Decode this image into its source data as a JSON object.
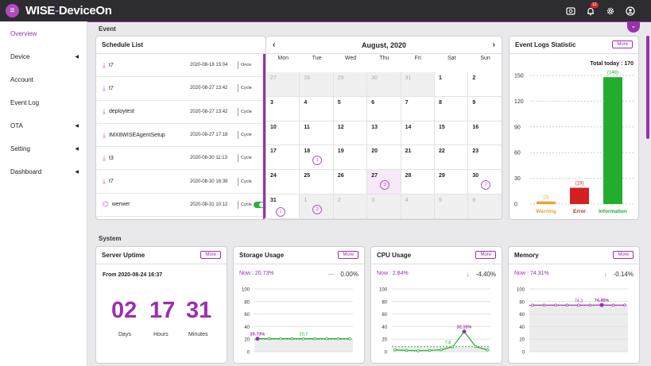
{
  "app": {
    "logo_text": "WISE",
    "logo_dash": "-",
    "logo_rest": "DeviceOn",
    "notification_count": "12"
  },
  "sidebar": {
    "items": [
      {
        "label": "Overview",
        "active": true,
        "caret": false
      },
      {
        "label": "Device",
        "caret": true
      },
      {
        "label": "Account",
        "caret": false
      },
      {
        "label": "Event Log",
        "caret": false
      },
      {
        "label": "OTA",
        "caret": true
      },
      {
        "label": "Setting",
        "caret": true
      },
      {
        "label": "Dashboard",
        "caret": true
      }
    ]
  },
  "sections": {
    "event": "Event",
    "system": "System"
  },
  "schedule": {
    "title": "Schedule List",
    "rows": [
      {
        "name": "t7",
        "date": "2020-08-18 15:04",
        "type": "Once",
        "toggle": false
      },
      {
        "name": "t7",
        "date": "2020-08-27 13:42",
        "type": "Cycle",
        "toggle": false
      },
      {
        "name": "deploytest",
        "date": "2020-08-27 13:42",
        "type": "Cycle",
        "toggle": false
      },
      {
        "name": "IMX8WISEAgentSetup",
        "date": "2020-08-27 17:18",
        "type": "Cycle",
        "toggle": false
      },
      {
        "name": "t3",
        "date": "2020-08-30 11:13",
        "type": "Cycle",
        "toggle": false
      },
      {
        "name": "t7",
        "date": "2020-08-30 16:39",
        "type": "Cycle",
        "toggle": false
      },
      {
        "name": "werwer",
        "date": "2020-08-31 10:12",
        "type": "Cycle",
        "toggle": true
      }
    ]
  },
  "calendar": {
    "title": "August, 2020",
    "prev": "‹",
    "next": "›",
    "weekdays": [
      "Mon",
      "Tue",
      "Wed",
      "Thu",
      "Fri",
      "Sat",
      "Sun"
    ],
    "weeks": [
      [
        {
          "d": "27",
          "o": true
        },
        {
          "d": "28",
          "o": true
        },
        {
          "d": "29",
          "o": true
        },
        {
          "d": "30",
          "o": true
        },
        {
          "d": "31",
          "o": true
        },
        {
          "d": "1"
        },
        {
          "d": "2"
        }
      ],
      [
        {
          "d": "3"
        },
        {
          "d": "4"
        },
        {
          "d": "5"
        },
        {
          "d": "6"
        },
        {
          "d": "7"
        },
        {
          "d": "8"
        },
        {
          "d": "9"
        }
      ],
      [
        {
          "d": "10"
        },
        {
          "d": "11"
        },
        {
          "d": "12"
        },
        {
          "d": "13"
        },
        {
          "d": "14"
        },
        {
          "d": "15"
        },
        {
          "d": "16"
        }
      ],
      [
        {
          "d": "17"
        },
        {
          "d": "18",
          "ev": "1"
        },
        {
          "d": "19"
        },
        {
          "d": "20"
        },
        {
          "d": "21"
        },
        {
          "d": "22"
        },
        {
          "d": "23"
        }
      ],
      [
        {
          "d": "24"
        },
        {
          "d": "25"
        },
        {
          "d": "26"
        },
        {
          "d": "27",
          "ev": "3",
          "sel": true
        },
        {
          "d": "28"
        },
        {
          "d": "29"
        },
        {
          "d": "30",
          "ev": "2"
        }
      ],
      [
        {
          "d": "31",
          "ev": "1"
        },
        {
          "d": "1",
          "o": true,
          "ev": "2"
        },
        {
          "d": "2",
          "o": true
        },
        {
          "d": "3",
          "o": true
        },
        {
          "d": "4",
          "o": true
        },
        {
          "d": "5",
          "o": true
        },
        {
          "d": "6",
          "o": true
        }
      ]
    ]
  },
  "event_stats": {
    "title": "Event Logs Statistic",
    "more": "More",
    "total": "Total today : 170",
    "chart_data": {
      "type": "bar",
      "categories": [
        "Warning",
        "Error",
        "Information"
      ],
      "values": [
        3,
        19,
        148
      ],
      "labels": [
        "(3)",
        "(19)",
        "(148)"
      ],
      "colors": [
        "#f0a030",
        "#d42020",
        "#22ad2e"
      ],
      "yticks": [
        0,
        30,
        60,
        90,
        120,
        150
      ],
      "ylim": [
        0,
        150
      ]
    }
  },
  "server_uptime": {
    "title": "Server Uptime",
    "more": "More",
    "from": "From 2020-08-24 16:37",
    "days": "02",
    "hours": "17",
    "minutes": "31",
    "days_label": "Days",
    "hours_label": "Hours",
    "minutes_label": "Minutes"
  },
  "storage": {
    "title": "Storage Usage",
    "more": "More",
    "now": "Now : 20.73%",
    "delta": "0.00%",
    "delta_symbol": "—",
    "chart_data": {
      "type": "line",
      "values": [
        20.73,
        20.7,
        20.7,
        20.7,
        20.7,
        20.7,
        20.7,
        20.7,
        20.7
      ],
      "annotations": [
        {
          "i": 0,
          "text": "20.73%"
        },
        {
          "i": 4,
          "text": "20.7"
        }
      ],
      "yticks": [
        0,
        20,
        40,
        60,
        80,
        100
      ],
      "ylim": [
        0,
        100
      ],
      "color": "#22ad2e",
      "ref": 20
    }
  },
  "cpu": {
    "title": "CPU Usage",
    "more": "More",
    "now": "Now : 2.84%",
    "delta": "-4.40%",
    "delta_symbol": "↓",
    "chart_data": {
      "type": "line",
      "values": [
        3,
        2,
        1.5,
        2,
        3,
        7.8,
        32.15,
        8,
        2.84
      ],
      "annotations": [
        {
          "i": 5,
          "text": "7.8"
        },
        {
          "i": 6,
          "text": "32.15%"
        }
      ],
      "yticks": [
        0,
        20,
        40,
        60,
        80,
        100
      ],
      "ylim": [
        0,
        100
      ],
      "color": "#22ad2e",
      "ref": 8
    }
  },
  "memory": {
    "title": "Memory",
    "more": "More",
    "now": "Now : 74.31%",
    "delta": "-0.14%",
    "delta_symbol": "↓",
    "chart_data": {
      "type": "line",
      "values": [
        74.3,
        74.3,
        74.3,
        74.3,
        74.3,
        74.3,
        74.45,
        74.3,
        74.31
      ],
      "annotations": [
        {
          "i": 4,
          "text": "74.3"
        },
        {
          "i": 6,
          "text": "74.45%"
        }
      ],
      "yticks": [
        0,
        20,
        40,
        60,
        80,
        100
      ],
      "ylim": [
        0,
        100
      ],
      "color": "#9b2fae",
      "ref": 74
    }
  }
}
